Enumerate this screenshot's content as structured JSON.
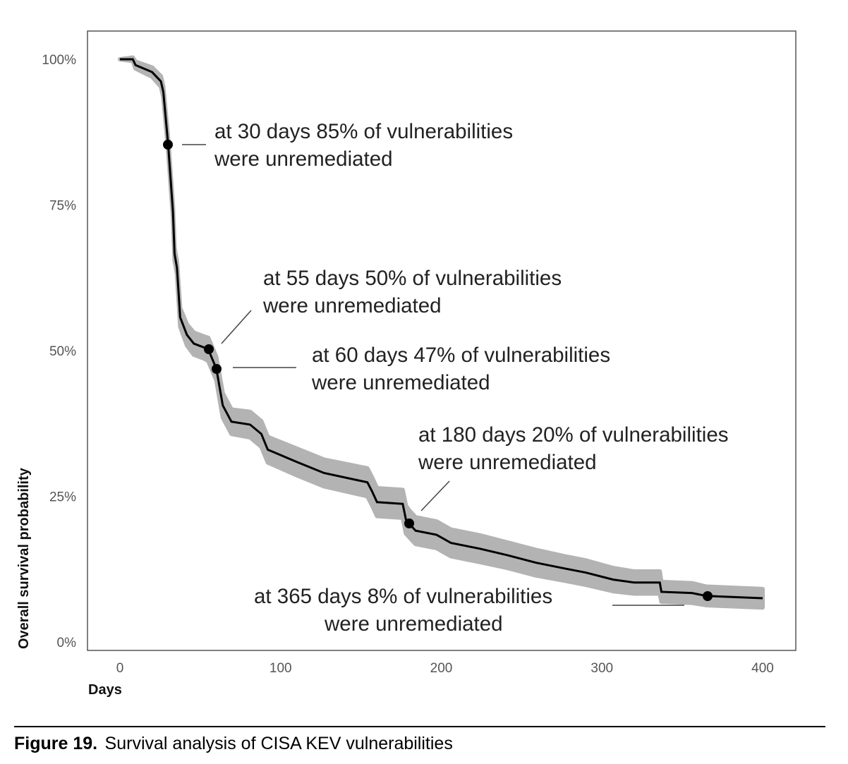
{
  "chart_data": {
    "type": "line",
    "title": "",
    "xlabel": "Days",
    "ylabel": "Overall survival probability",
    "xlim": [
      -20,
      420
    ],
    "ylim": [
      0,
      100
    ],
    "x_ticks": [
      "0",
      "100",
      "200",
      "300",
      "400"
    ],
    "y_ticks": [
      "0%",
      "25%",
      "50%",
      "75%",
      "100%"
    ],
    "grid": false,
    "legend": "none",
    "colors": {
      "line": "#000000",
      "band": "#b3b3b3",
      "frame": "#555555"
    },
    "series": [
      {
        "x": [
          0,
          8,
          9.7,
          20,
          25.5,
          27,
          30,
          33,
          34,
          35.5,
          37.5,
          41.7,
          46,
          52.7,
          55,
          60,
          64,
          69.4,
          81,
          88,
          92,
          110,
          127,
          154,
          157,
          160,
          176,
          178,
          180,
          184,
          197,
          206,
          224,
          241,
          259,
          277,
          290,
          307,
          320,
          336,
          337,
          356,
          365,
          400
        ],
        "y": [
          100,
          100,
          99,
          97.8,
          96.2,
          94.4,
          85.4,
          73.8,
          66.6,
          64.2,
          55.7,
          52.7,
          51.2,
          50.5,
          50.2,
          46.9,
          40.6,
          37.8,
          37.3,
          35.7,
          33,
          30.9,
          29,
          27.4,
          25.8,
          24,
          23.7,
          21,
          20.3,
          19.1,
          18.4,
          17,
          16,
          14.9,
          13.6,
          12.6,
          11.9,
          10.7,
          10.2,
          10.2,
          8.6,
          8.4,
          7.9,
          7.5
        ],
        "ci_halfwidth": [
          0,
          0.3,
          0.6,
          0.8,
          0.9,
          0.9,
          1,
          1,
          1.1,
          1.1,
          1.6,
          1.8,
          1.9,
          1.9,
          2,
          2,
          2.1,
          2.1,
          2.2,
          2.2,
          2.2,
          2.3,
          2.3,
          2.4,
          2.4,
          2.4,
          2.4,
          2.4,
          2.3,
          2.3,
          2.3,
          2.3,
          2.3,
          2.2,
          2.2,
          2.1,
          2.1,
          2,
          1.9,
          1.9,
          1.7,
          1.7,
          1.6,
          1.6
        ]
      }
    ],
    "highlighted_points": [
      {
        "x": 30,
        "y": 85,
        "line1": "at 30 days 85% of vulnerabilities",
        "line2": "were unremediated"
      },
      {
        "x": 55,
        "y": 50,
        "line1": "at 55 days 50% of vulnerabilities",
        "line2": "were unremediated"
      },
      {
        "x": 60,
        "y": 47,
        "line1": "at 60 days 47% of vulnerabilities",
        "line2": "were unremediated"
      },
      {
        "x": 180,
        "y": 20,
        "line1": "at 180 days 20% of vulnerabilities",
        "line2": "were unremediated"
      },
      {
        "x": 365,
        "y": 8,
        "line1": "at 365 days 8% of vulnerabilities",
        "line2": "were unremediated"
      }
    ]
  },
  "caption": {
    "label": "Figure 19.",
    "text": "Survival analysis of CISA KEV vulnerabilities"
  }
}
